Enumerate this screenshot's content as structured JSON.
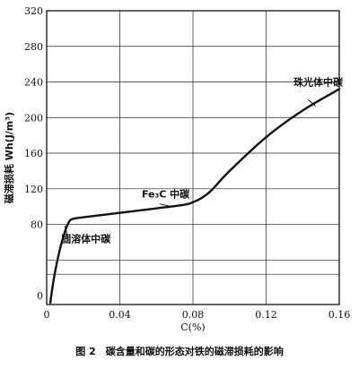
{
  "chart_data": {
    "type": "line",
    "xlabel": "C(%)",
    "ylabel": "磁滞损耗 Wh(J/m³)",
    "xlim": [
      0,
      0.16
    ],
    "ylim": [
      -10,
      320
    ],
    "x_ticks": [
      0,
      0.04,
      0.08,
      0.12,
      0.16
    ],
    "x_tick_labels": [
      "0",
      "0.04",
      "0.08",
      "0.12",
      "0.16"
    ],
    "y_ticks": [
      0,
      80,
      120,
      160,
      200,
      240,
      280,
      320
    ],
    "y_tick_labels": [
      "0",
      "80",
      "120",
      "160",
      "200",
      "240",
      "280",
      "320"
    ],
    "grid_lines_y": [
      24,
      40,
      80,
      120,
      160,
      200,
      240,
      280
    ],
    "series": [
      {
        "x": [
          0.002,
          0.004,
          0.007,
          0.01,
          0.012,
          0.014,
          0.02,
          0.04,
          0.06,
          0.075,
          0.08,
          0.085,
          0.09,
          0.1,
          0.12,
          0.14,
          0.16
        ],
        "y": [
          -8,
          20,
          50,
          72,
          82,
          86,
          88,
          93,
          98,
          102,
          105,
          110,
          118,
          140,
          178,
          208,
          232
        ]
      }
    ],
    "annotations": [
      {
        "text": "固溶体中碳",
        "x": 0.008,
        "y": 60
      },
      {
        "text": "Fe₃C 中碳",
        "x": 0.052,
        "y": 110
      },
      {
        "text": "珠光体中碳",
        "x": 0.135,
        "y": 236
      }
    ]
  },
  "caption": "图 2　碳含量和碳的形态对铁的磁滞损耗的影响"
}
